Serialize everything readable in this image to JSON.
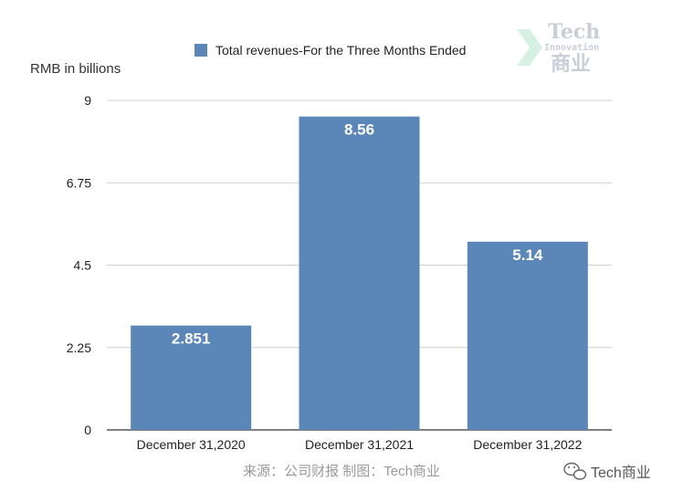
{
  "chart_data": {
    "type": "bar",
    "categories": [
      "December 31,2020",
      "December 31,2021",
      "December 31,2022"
    ],
    "series": [
      {
        "name": "Total revenues-For the Three Months Ended",
        "values": [
          2.851,
          8.56,
          5.14
        ]
      }
    ],
    "data_labels": [
      "2.851",
      "8.56",
      "5.14"
    ],
    "ylabel": "RMB in billions",
    "xlabel": "",
    "ylim": [
      0,
      9
    ],
    "yticks": [
      0,
      2.25,
      4.5,
      6.75,
      9
    ],
    "ytick_labels": [
      "0",
      "2.25",
      "4.5",
      "6.75",
      "9"
    ],
    "grid": true,
    "legend_position": "top",
    "bar_color": "#5b86b8"
  },
  "source_text": "来源：公司财报 制图：Tech商业",
  "watermark": {
    "line1": "Tech",
    "line2": "Innovation",
    "line3": "商业"
  },
  "brand": {
    "name": "Tech商业",
    "icon": "wechat-icon"
  }
}
